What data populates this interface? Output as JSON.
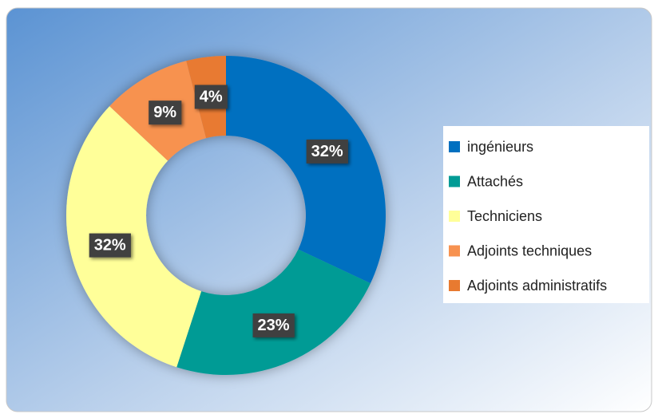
{
  "chart_data": {
    "type": "donut",
    "categories": [
      "ingénieurs",
      "Attachés",
      "Techniciens",
      "Adjoints techniques",
      "Adjoints administratifs"
    ],
    "values": [
      32,
      23,
      32,
      9,
      4
    ],
    "value_labels": [
      "32%",
      "23%",
      "32%",
      "9%",
      "4%"
    ],
    "colors": [
      "#0070C0",
      "#009B95",
      "#FFFF99",
      "#F79250",
      "#E87A30"
    ],
    "legend": "right"
  }
}
